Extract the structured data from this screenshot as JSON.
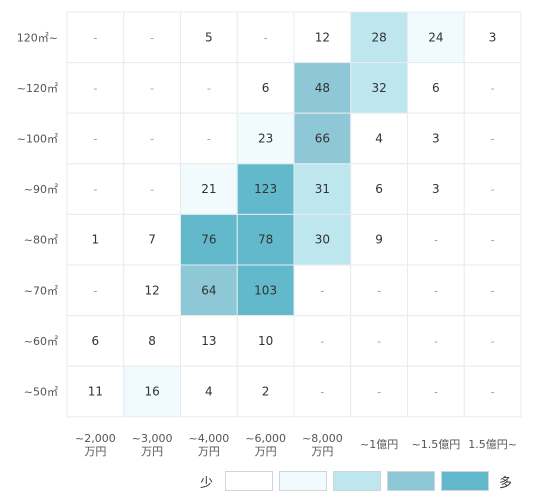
{
  "chart_data": {
    "type": "heatmap",
    "title": "",
    "x_categories": [
      "~2,000\n万円",
      "~3,000\n万円",
      "~4,000\n万円",
      "~6,000\n万円",
      "~8,000\n万円",
      "~1億円",
      "~1.5億円",
      "1.5億円~"
    ],
    "y_categories": [
      "120㎡~",
      "~120㎡",
      "~100㎡",
      "~90㎡",
      "~80㎡",
      "~70㎡",
      "~60㎡",
      "~50㎡"
    ],
    "values": [
      [
        null,
        null,
        5,
        null,
        12,
        28,
        24,
        3
      ],
      [
        null,
        null,
        null,
        6,
        48,
        32,
        6,
        null
      ],
      [
        null,
        null,
        null,
        23,
        66,
        4,
        3,
        null
      ],
      [
        null,
        null,
        21,
        123,
        31,
        6,
        3,
        null
      ],
      [
        1,
        7,
        76,
        78,
        30,
        9,
        null,
        null
      ],
      [
        null,
        12,
        64,
        103,
        null,
        null,
        null,
        null
      ],
      [
        6,
        8,
        13,
        10,
        null,
        null,
        null,
        null
      ],
      [
        11,
        16,
        4,
        2,
        null,
        null,
        null,
        null
      ]
    ],
    "missing_label": "-",
    "legend": {
      "low_label": "少",
      "high_label": "多",
      "colors": [
        "#ffffff",
        "#f1fafd",
        "#bde6ef",
        "#8ec8d6",
        "#62b9cb"
      ]
    },
    "colors": {
      "grid": "#e6ecef",
      "text": "#333333",
      "missing_text": "#999999"
    }
  }
}
